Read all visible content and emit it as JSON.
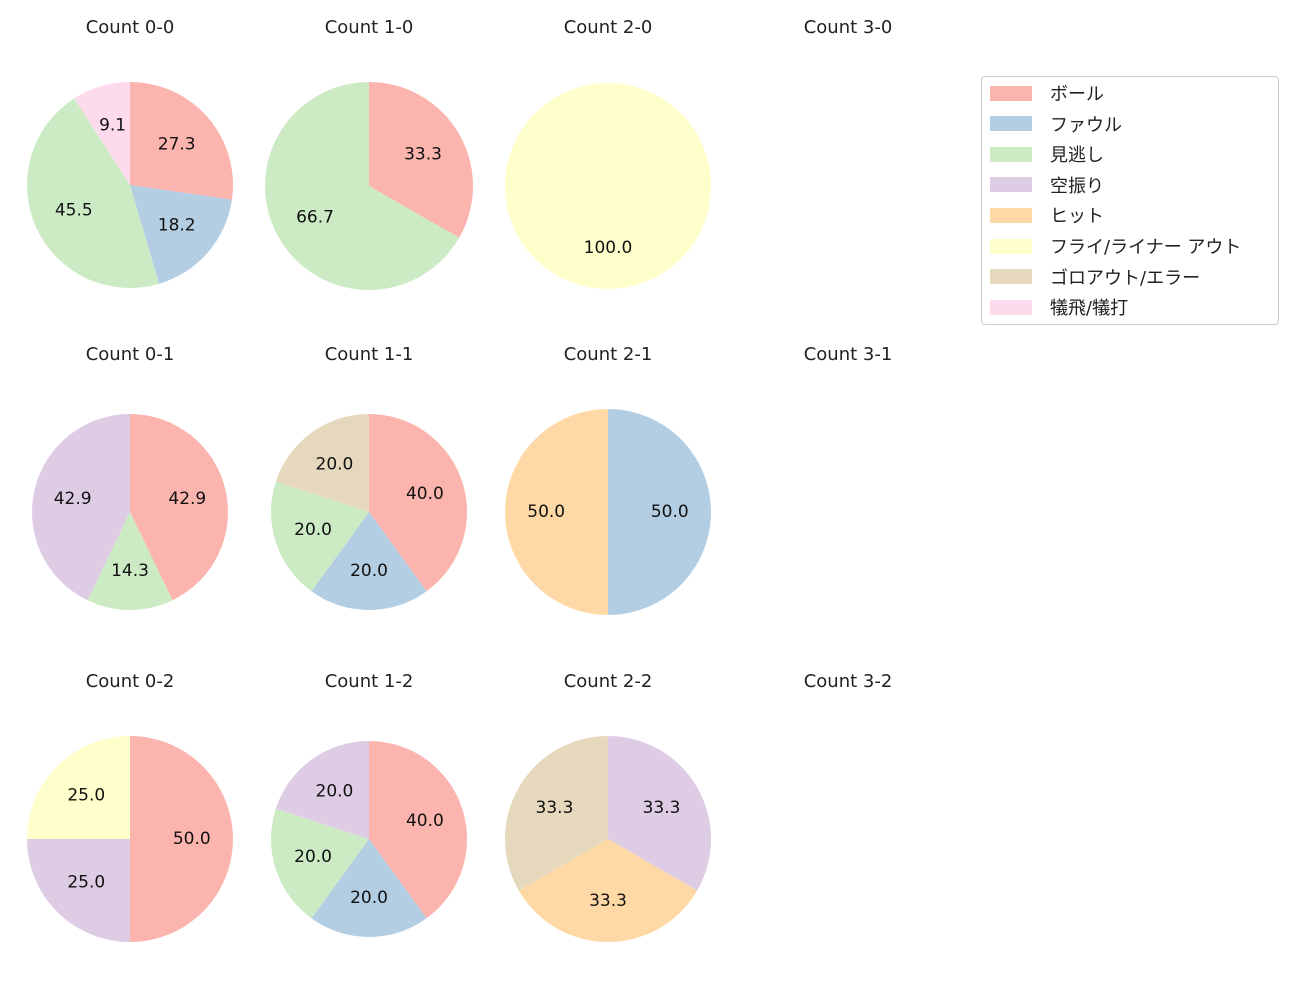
{
  "chart_data": {
    "type": "pie",
    "categories": [
      "ボール",
      "ファウル",
      "見逃し",
      "空振り",
      "ヒット",
      "フライ/ライナー アウト",
      "ゴロアウト/エラー",
      "犠飛/犠打"
    ],
    "colors": [
      "#fbb4ae",
      "#b3cde3",
      "#ccebc5",
      "#decbe4",
      "#fed9a6",
      "#ffffcc",
      "#e5d8bd",
      "#fddaec"
    ],
    "start_angle": 90,
    "direction": "clockwise",
    "legend_position": "right",
    "charts": [
      {
        "title": "Count 0-0",
        "values": [
          27.3,
          18.2,
          45.5,
          0,
          0,
          0,
          0,
          9.1
        ]
      },
      {
        "title": "Count 1-0",
        "values": [
          33.3,
          0,
          66.7,
          0,
          0,
          0,
          0,
          0
        ]
      },
      {
        "title": "Count 2-0",
        "values": [
          0,
          0,
          0,
          0,
          0,
          100.0,
          0,
          0
        ]
      },
      {
        "title": "Count 3-0",
        "values": []
      },
      {
        "title": "Count 0-1",
        "values": [
          42.9,
          0,
          14.3,
          42.9,
          0,
          0,
          0,
          0
        ]
      },
      {
        "title": "Count 1-1",
        "values": [
          40.0,
          20.0,
          20.0,
          0,
          0,
          0,
          20.0,
          0
        ]
      },
      {
        "title": "Count 2-1",
        "values": [
          0,
          50.0,
          0,
          0,
          50.0,
          0,
          0,
          0
        ]
      },
      {
        "title": "Count 3-1",
        "values": []
      },
      {
        "title": "Count 0-2",
        "values": [
          50.0,
          0,
          0,
          25.0,
          0,
          25.0,
          0,
          0
        ]
      },
      {
        "title": "Count 1-2",
        "values": [
          40.0,
          20.0,
          20.0,
          20.0,
          0,
          0,
          0,
          0
        ]
      },
      {
        "title": "Count 2-2",
        "values": [
          0,
          0,
          0,
          33.3,
          33.3,
          0,
          33.3,
          0
        ]
      },
      {
        "title": "Count 3-2",
        "values": []
      }
    ]
  }
}
